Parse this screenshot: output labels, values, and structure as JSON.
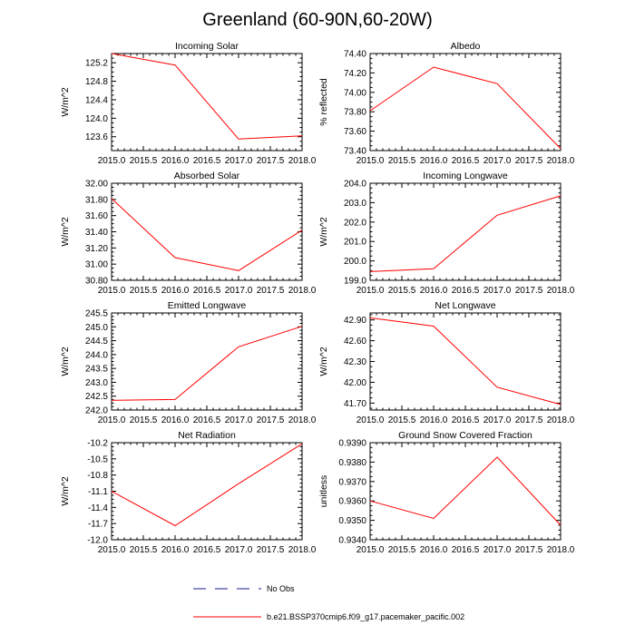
{
  "figure": {
    "title": "Greenland (60-90N,60-20W)",
    "colors": {
      "model_line": "#ff0000",
      "obs_line": "#1a1a8c",
      "axis": "#000000"
    },
    "legend": {
      "entries": [
        {
          "label": "No Obs",
          "style": "dashed",
          "color": "#1a1a8c"
        },
        {
          "label": "b.e21.BSSP370cmip6.f09_g17.pacemaker_pacific.002",
          "style": "solid",
          "color": "#ff0000"
        }
      ]
    }
  },
  "chart_data": [
    {
      "type": "line",
      "title": "Incoming Solar",
      "xlabel": "",
      "ylabel": "W/m^2",
      "xlim": [
        2015.0,
        2018.0
      ],
      "ylim": [
        123.3,
        125.4
      ],
      "xticks": [
        "2015.0",
        "2015.5",
        "2016.0",
        "2016.5",
        "2017.0",
        "2017.5",
        "2018.0"
      ],
      "yticks": [
        123.6,
        124.0,
        124.4,
        124.8,
        125.2
      ],
      "ytick_decimals": 1,
      "series": [
        {
          "x": [
            2015,
            2016,
            2017,
            2018
          ],
          "y": [
            125.4,
            125.15,
            123.55,
            123.62
          ]
        }
      ]
    },
    {
      "type": "line",
      "title": "Albedo",
      "xlabel": "",
      "ylabel": "% reflected",
      "xlim": [
        2015.0,
        2018.0
      ],
      "ylim": [
        73.4,
        74.4
      ],
      "xticks": [
        "2015.0",
        "2015.5",
        "2016.0",
        "2016.5",
        "2017.0",
        "2017.5",
        "2018.0"
      ],
      "yticks": [
        73.4,
        73.6,
        73.8,
        74.0,
        74.2,
        74.4
      ],
      "ytick_decimals": 2,
      "series": [
        {
          "x": [
            2015,
            2016,
            2017,
            2018
          ],
          "y": [
            73.81,
            74.26,
            74.09,
            73.42
          ]
        }
      ]
    },
    {
      "type": "line",
      "title": "Absorbed Solar",
      "xlabel": "",
      "ylabel": "W/m^2",
      "xlim": [
        2015.0,
        2018.0
      ],
      "ylim": [
        30.8,
        32.0
      ],
      "xticks": [
        "2015.0",
        "2015.5",
        "2016.0",
        "2016.5",
        "2017.0",
        "2017.5",
        "2018.0"
      ],
      "yticks": [
        30.8,
        31.0,
        31.2,
        31.4,
        31.6,
        31.8,
        32.0
      ],
      "ytick_decimals": 2,
      "series": [
        {
          "x": [
            2015,
            2016,
            2017,
            2018
          ],
          "y": [
            31.81,
            31.08,
            30.92,
            31.42
          ]
        }
      ]
    },
    {
      "type": "line",
      "title": "Incoming Longwave",
      "xlabel": "",
      "ylabel": "W/m^2",
      "xlim": [
        2015.0,
        2018.0
      ],
      "ylim": [
        199.0,
        204.0
      ],
      "xticks": [
        "2015.0",
        "2015.5",
        "2016.0",
        "2016.5",
        "2017.0",
        "2017.5",
        "2018.0"
      ],
      "yticks": [
        199.0,
        200.0,
        201.0,
        202.0,
        203.0,
        204.0
      ],
      "ytick_decimals": 1,
      "series": [
        {
          "x": [
            2015,
            2016,
            2017,
            2018
          ],
          "y": [
            199.45,
            199.6,
            202.35,
            203.35
          ]
        }
      ]
    },
    {
      "type": "line",
      "title": "Emitted Longwave",
      "xlabel": "",
      "ylabel": "W/m^2",
      "xlim": [
        2015.0,
        2018.0
      ],
      "ylim": [
        242.0,
        245.5
      ],
      "xticks": [
        "2015.0",
        "2015.5",
        "2016.0",
        "2016.5",
        "2017.0",
        "2017.5",
        "2018.0"
      ],
      "yticks": [
        242.0,
        242.5,
        243.0,
        243.5,
        244.0,
        244.5,
        245.0,
        245.5
      ],
      "ytick_decimals": 1,
      "series": [
        {
          "x": [
            2015,
            2016,
            2017,
            2018
          ],
          "y": [
            242.35,
            242.38,
            244.28,
            245.02
          ]
        }
      ]
    },
    {
      "type": "line",
      "title": "Net Longwave",
      "xlabel": "",
      "ylabel": "W/m^2",
      "xlim": [
        2015.0,
        2018.0
      ],
      "ylim": [
        41.6,
        43.0
      ],
      "xticks": [
        "2015.0",
        "2015.5",
        "2016.0",
        "2016.5",
        "2017.0",
        "2017.5",
        "2018.0"
      ],
      "yticks": [
        41.7,
        42.0,
        42.3,
        42.6,
        42.9
      ],
      "ytick_decimals": 2,
      "series": [
        {
          "x": [
            2015,
            2016,
            2017,
            2018
          ],
          "y": [
            42.93,
            42.81,
            41.93,
            41.68
          ]
        }
      ]
    },
    {
      "type": "line",
      "title": "Net Radiation",
      "xlabel": "",
      "ylabel": "W/m^2",
      "xlim": [
        2015.0,
        2018.0
      ],
      "ylim": [
        -12.0,
        -10.2
      ],
      "xticks": [
        "2015.0",
        "2015.5",
        "2016.0",
        "2016.5",
        "2017.0",
        "2017.5",
        "2018.0"
      ],
      "yticks": [
        -12.0,
        -11.7,
        -11.4,
        -11.1,
        -10.8,
        -10.5,
        -10.2
      ],
      "ytick_decimals": 1,
      "series": [
        {
          "x": [
            2015,
            2016,
            2017,
            2018
          ],
          "y": [
            -11.1,
            -11.74,
            -10.96,
            -10.22
          ]
        }
      ]
    },
    {
      "type": "line",
      "title": "Ground Snow Covered Fraction",
      "xlabel": "",
      "ylabel": "unitless",
      "xlim": [
        2015.0,
        2018.0
      ],
      "ylim": [
        0.934,
        0.939
      ],
      "xticks": [
        "2015.0",
        "2015.5",
        "2016.0",
        "2016.5",
        "2017.0",
        "2017.5",
        "2018.0"
      ],
      "yticks": [
        0.934,
        0.935,
        0.936,
        0.937,
        0.938,
        0.939
      ],
      "ytick_decimals": 4,
      "series": [
        {
          "x": [
            2015,
            2016,
            2017,
            2018
          ],
          "y": [
            0.936,
            0.9351,
            0.93825,
            0.93475
          ]
        }
      ]
    }
  ]
}
